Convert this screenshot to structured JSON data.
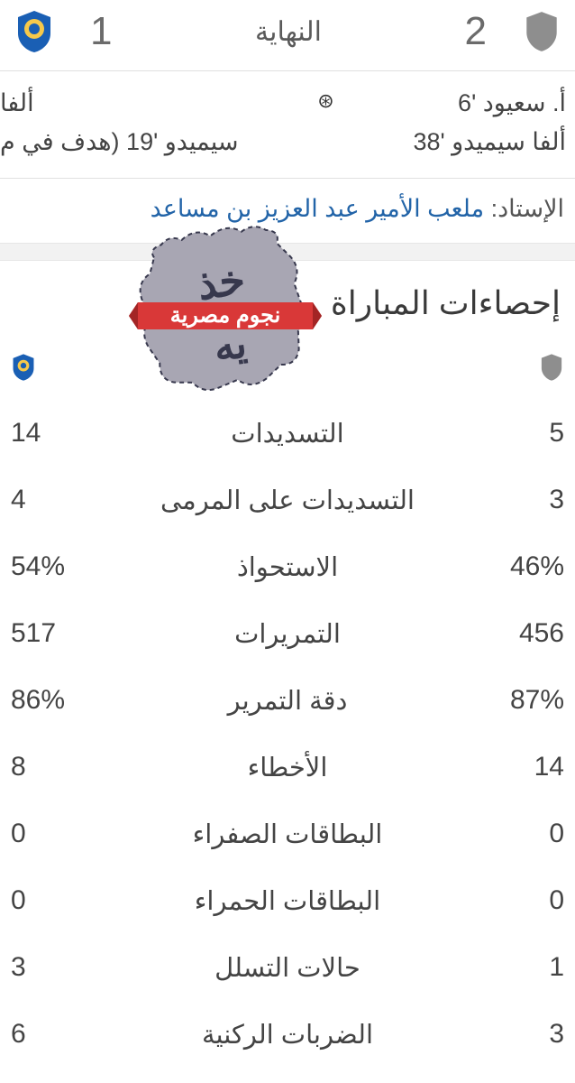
{
  "header": {
    "home_score": "2",
    "away_score": "1",
    "status": "النهاية"
  },
  "scorers": {
    "home": [
      "أ. سعيود '6",
      "ألفا سيميدو '38"
    ],
    "away": [
      "ألفا",
      "سيميدو '19 (هدف في م"
    ]
  },
  "stadium": {
    "label": "الإستاد:",
    "name": "ملعب الأمير عبد العزيز بن مساعد"
  },
  "watermark": {
    "text": "نجوم مصرية",
    "ribbon_color": "#d93838",
    "body_color": "#a8a6b3",
    "border_color": "#37384d"
  },
  "stats_section": {
    "title": "إحصاءات المباراة",
    "rows": [
      {
        "label": "التسديدات",
        "home": "5",
        "away": "14"
      },
      {
        "label": "التسديدات على المرمى",
        "home": "3",
        "away": "4"
      },
      {
        "label": "الاستحواذ",
        "home": "46%",
        "away": "54%"
      },
      {
        "label": "التمريرات",
        "home": "456",
        "away": "517"
      },
      {
        "label": "دقة التمرير",
        "home": "87%",
        "away": "86%"
      },
      {
        "label": "الأخطاء",
        "home": "14",
        "away": "8"
      },
      {
        "label": "البطاقات الصفراء",
        "home": "0",
        "away": "0"
      },
      {
        "label": "البطاقات الحمراء",
        "home": "0",
        "away": "0"
      },
      {
        "label": "حالات التسلل",
        "home": "1",
        "away": "3"
      },
      {
        "label": "الضربات الركنية",
        "home": "3",
        "away": "6"
      }
    ]
  },
  "colors": {
    "text": "#3c3c3c",
    "link": "#2264a8",
    "divider": "#e0e0e0",
    "home_shield": "#8e8e8e",
    "away_badge_bg": "#1a5fb4",
    "away_badge_accent": "#f7c94a"
  }
}
